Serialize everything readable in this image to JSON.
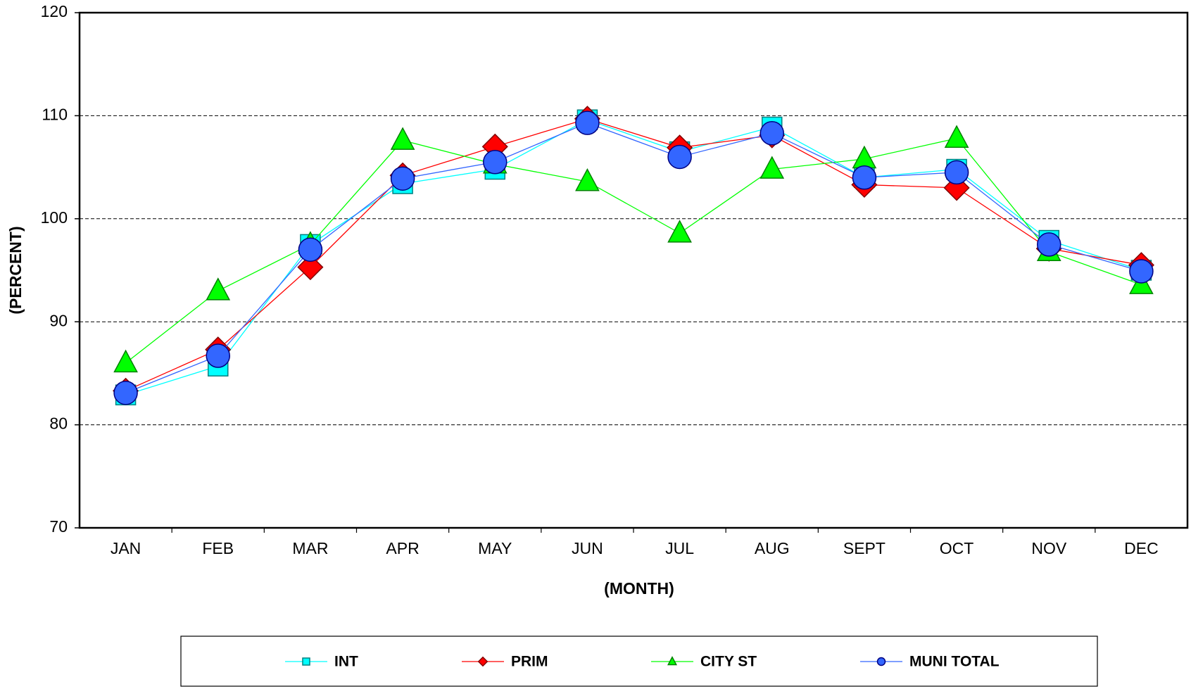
{
  "chart_data": {
    "type": "line",
    "x_label": "(MONTH)",
    "y_label": "(PERCENT)",
    "categories": [
      "JAN",
      "FEB",
      "MAR",
      "APR",
      "MAY",
      "JUN",
      "JUL",
      "AUG",
      "SEPT",
      "OCT",
      "NOV",
      "DEC"
    ],
    "ylim": [
      70,
      120
    ],
    "yticks": [
      70,
      80,
      90,
      100,
      110,
      120
    ],
    "grid": true,
    "series": [
      {
        "name": "INT",
        "color": "#00ffff",
        "marker": "square",
        "marker_edge": "#008080",
        "values": [
          82.9,
          85.7,
          97.5,
          103.4,
          104.8,
          109.6,
          106.5,
          108.9,
          104.0,
          104.8,
          97.9,
          95.0
        ]
      },
      {
        "name": "PRIM",
        "color": "#ff0000",
        "marker": "diamond",
        "marker_edge": "#800000",
        "values": [
          83.3,
          87.3,
          95.3,
          104.2,
          107.0,
          109.7,
          106.9,
          108.1,
          103.3,
          103.0,
          97.1,
          95.5
        ]
      },
      {
        "name": "CITY ST",
        "color": "#00ff00",
        "marker": "triangle",
        "marker_edge": "#008000",
        "values": [
          86.0,
          93.0,
          97.5,
          107.6,
          105.3,
          103.6,
          98.6,
          104.8,
          105.8,
          107.8,
          96.8,
          93.6
        ]
      },
      {
        "name": "MUNI TOTAL",
        "color": "#3366ff",
        "marker": "circle",
        "marker_edge": "#000080",
        "values": [
          83.1,
          86.7,
          97.0,
          103.9,
          105.5,
          109.3,
          106.0,
          108.3,
          104.0,
          104.5,
          97.5,
          94.9
        ]
      }
    ]
  }
}
